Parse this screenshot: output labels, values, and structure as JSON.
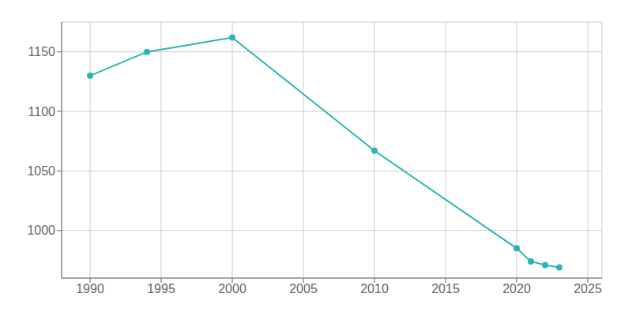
{
  "chart_data": {
    "type": "line",
    "x": [
      1990,
      1994,
      2000,
      2010,
      2020,
      2021,
      2022,
      2023
    ],
    "values": [
      1130,
      1150,
      1162,
      1067,
      985,
      974,
      971,
      969
    ],
    "color": "#2ab5b5",
    "marker": "circle",
    "xlim": [
      1988,
      2026
    ],
    "ylim": [
      960,
      1175
    ],
    "xticks": [
      1990,
      1995,
      2000,
      2005,
      2010,
      2015,
      2020,
      2025
    ],
    "yticks": [
      1000,
      1050,
      1100,
      1150
    ],
    "grid": true
  }
}
